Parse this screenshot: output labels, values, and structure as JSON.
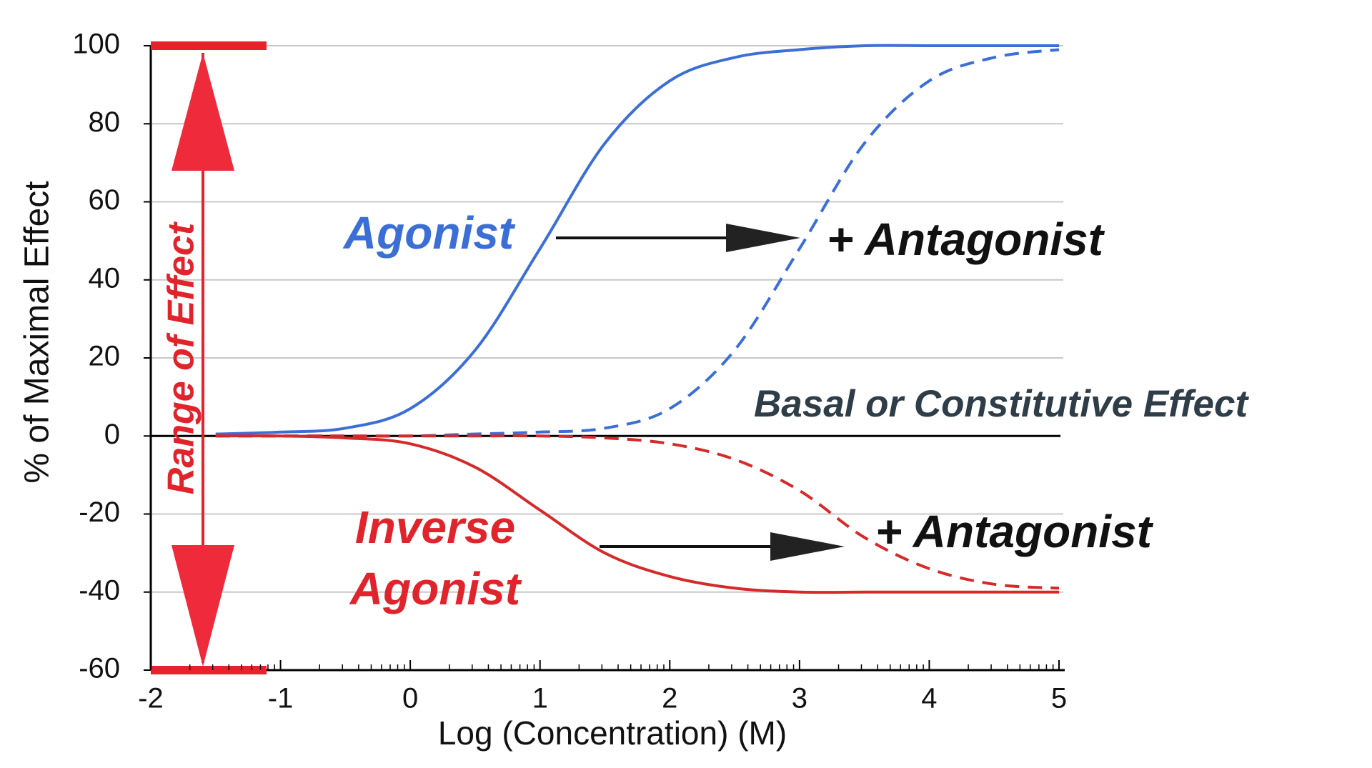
{
  "chart_data": {
    "type": "line",
    "x_label": "Log (Concentration) (M)",
    "y_label": "% of Maximal Effect",
    "x": [
      -1.5,
      -1,
      -0.5,
      0,
      0.5,
      1,
      1.5,
      2,
      2.5,
      3,
      3.5,
      4,
      4.5,
      5
    ],
    "series": [
      {
        "color": "#3b6fd6",
        "dashed": false,
        "values": [
          0.5,
          1,
          2,
          7,
          22,
          48,
          75,
          91,
          97,
          99,
          100,
          100,
          100,
          100
        ]
      },
      {
        "color": "#3b6fd6",
        "dashed": true,
        "values": [
          0,
          0,
          0,
          0,
          0.5,
          1,
          2,
          7,
          22,
          48,
          75,
          91,
          97,
          99
        ]
      },
      {
        "color": "#d42a2a",
        "dashed": false,
        "values": [
          0,
          0,
          -0.5,
          -2,
          -8,
          -19,
          -30,
          -36,
          -39,
          -40,
          -40,
          -40,
          -40,
          -40
        ]
      },
      {
        "color": "#d42a2a",
        "dashed": true,
        "values": [
          0,
          0,
          0,
          0,
          0,
          0,
          -0.5,
          -2,
          -6,
          -14,
          -26,
          -34,
          -38,
          -39
        ]
      }
    ],
    "xlim": [
      -2,
      5
    ],
    "xticks": [
      -2,
      -1,
      0,
      1,
      2,
      3,
      4,
      5
    ],
    "ylim": [
      -60,
      100
    ],
    "yticks": [
      -60,
      -40,
      -20,
      0,
      20,
      40,
      60,
      80,
      100
    ],
    "grid": true,
    "log_minor_ticks": true,
    "annotations": {
      "agonist": "Agonist",
      "agonist_antagonist": "+ Antagonist",
      "inverse_agonist": [
        "Inverse",
        "Agonist"
      ],
      "inverse_antagonist": "+ Antagonist",
      "basal": "Basal or Constitutive Effect",
      "range": "Range of Effect"
    }
  }
}
